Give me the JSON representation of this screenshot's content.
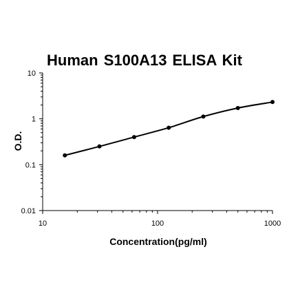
{
  "chart_data": {
    "type": "line",
    "title": "Human S100A13  ELISA Kit",
    "xlabel": "Concentration(pg/ml)",
    "ylabel": "O.D.",
    "x_scale": "log",
    "y_scale": "log",
    "xlim": [
      10,
      1000
    ],
    "ylim": [
      0.01,
      10
    ],
    "x_ticks": [
      "10",
      "100",
      "1000"
    ],
    "y_ticks": [
      "0.01",
      "0.1",
      "1",
      "10"
    ],
    "grid": false,
    "legend": "none",
    "series": [
      {
        "x": [
          15.6,
          31.2,
          62.5,
          125,
          250,
          500,
          1000
        ],
        "y": [
          0.16,
          0.25,
          0.4,
          0.64,
          1.12,
          1.72,
          2.32
        ]
      }
    ],
    "colors": {
      "line": "#000000",
      "marker": "#000000",
      "axis": "#000000"
    }
  }
}
